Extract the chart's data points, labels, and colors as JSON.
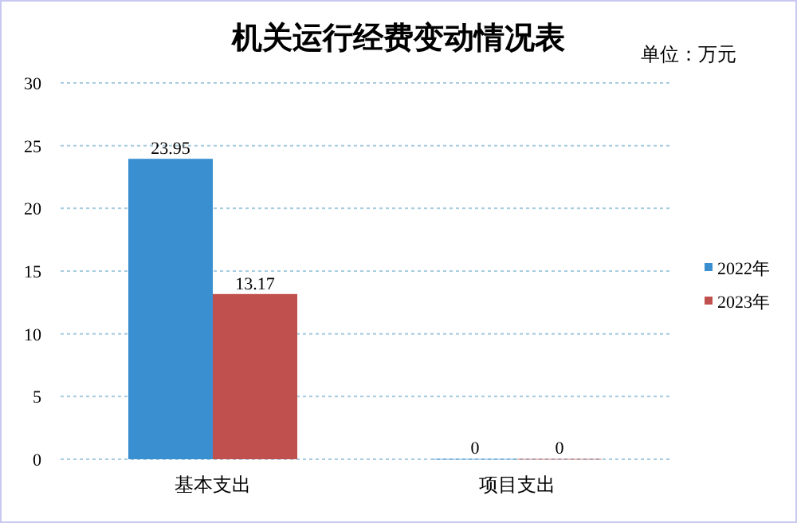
{
  "chart_data": {
    "type": "bar",
    "title": "机关运行经费变动情况表",
    "annotations": [
      "单位：万元"
    ],
    "categories": [
      "基本支出",
      "项目支出"
    ],
    "series": [
      {
        "name": "2022年",
        "color": "#3a8fd0",
        "values": [
          23.95,
          0
        ]
      },
      {
        "name": "2023年",
        "color": "#c0504d",
        "values": [
          13.17,
          0
        ]
      }
    ],
    "ylim": [
      0,
      30
    ],
    "yticks": [
      0,
      5,
      10,
      15,
      20,
      25,
      30
    ],
    "grid": "y",
    "legend": "right",
    "data_labels": true
  }
}
